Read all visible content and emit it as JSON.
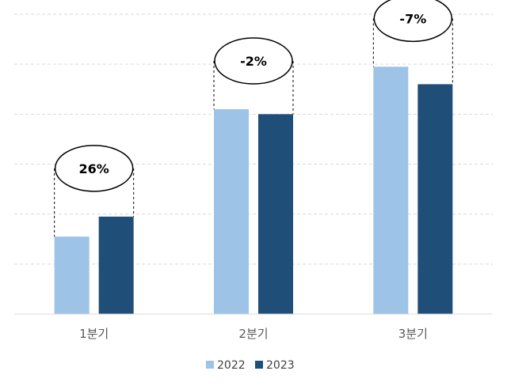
{
  "chart_data": {
    "type": "bar",
    "categories": [
      "1분기",
      "2분기",
      "3분기"
    ],
    "series": [
      {
        "name": "2022",
        "values": [
          31,
          82,
          99
        ],
        "color": "#9DC3E6"
      },
      {
        "name": "2023",
        "values": [
          39,
          80,
          92
        ],
        "color": "#1F4E79"
      }
    ],
    "annotations": [
      "26%",
      "-2%",
      "-7%"
    ],
    "ylim": [
      0,
      120
    ],
    "grid": true,
    "legend": "bottom-center",
    "xlabel": "",
    "ylabel": "",
    "title": ""
  }
}
